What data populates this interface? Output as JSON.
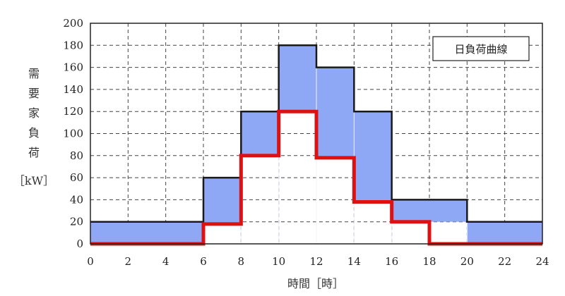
{
  "chart_data": {
    "type": "area",
    "step": true,
    "x": [
      0,
      2,
      4,
      6,
      8,
      10,
      12,
      14,
      16,
      18,
      20,
      22,
      24
    ],
    "xlim": [
      0,
      24
    ],
    "ylim": [
      0,
      200
    ],
    "x_ticks": [
      0,
      2,
      4,
      6,
      8,
      10,
      12,
      14,
      16,
      18,
      20,
      22,
      24
    ],
    "y_ticks": [
      0,
      20,
      40,
      60,
      80,
      100,
      120,
      140,
      160,
      180,
      200
    ],
    "xlabel": "時間［時］",
    "ylabel_chars": [
      "需",
      "要",
      "家",
      "負",
      "荷"
    ],
    "ylabel_unit": "［kW］",
    "legend_label": "日負荷曲線",
    "legend_position": "top-right",
    "grid": true,
    "grid_style": "dashed",
    "series": [
      {
        "name": "日負荷曲線",
        "steps": [
          {
            "from": 0,
            "to": 6,
            "value": 20
          },
          {
            "from": 6,
            "to": 8,
            "value": 60
          },
          {
            "from": 8,
            "to": 10,
            "value": 120
          },
          {
            "from": 10,
            "to": 12,
            "value": 180
          },
          {
            "from": 12,
            "to": 14,
            "value": 160
          },
          {
            "from": 14,
            "to": 16,
            "value": 120
          },
          {
            "from": 16,
            "to": 20,
            "value": 40
          },
          {
            "from": 20,
            "to": 24,
            "value": 20
          }
        ],
        "color": "#1a1a1a",
        "fill": "#8fa8f5"
      },
      {
        "steps": [
          {
            "from": 0,
            "to": 6,
            "value": 0
          },
          {
            "from": 6,
            "to": 8,
            "value": 18
          },
          {
            "from": 8,
            "to": 10,
            "value": 80
          },
          {
            "from": 10,
            "to": 12,
            "value": 120
          },
          {
            "from": 12,
            "to": 14,
            "value": 78
          },
          {
            "from": 14,
            "to": 16,
            "value": 38
          },
          {
            "from": 16,
            "to": 18,
            "value": 20
          },
          {
            "from": 18,
            "to": 24,
            "value": 0
          }
        ],
        "color": "#dd1111"
      }
    ]
  }
}
